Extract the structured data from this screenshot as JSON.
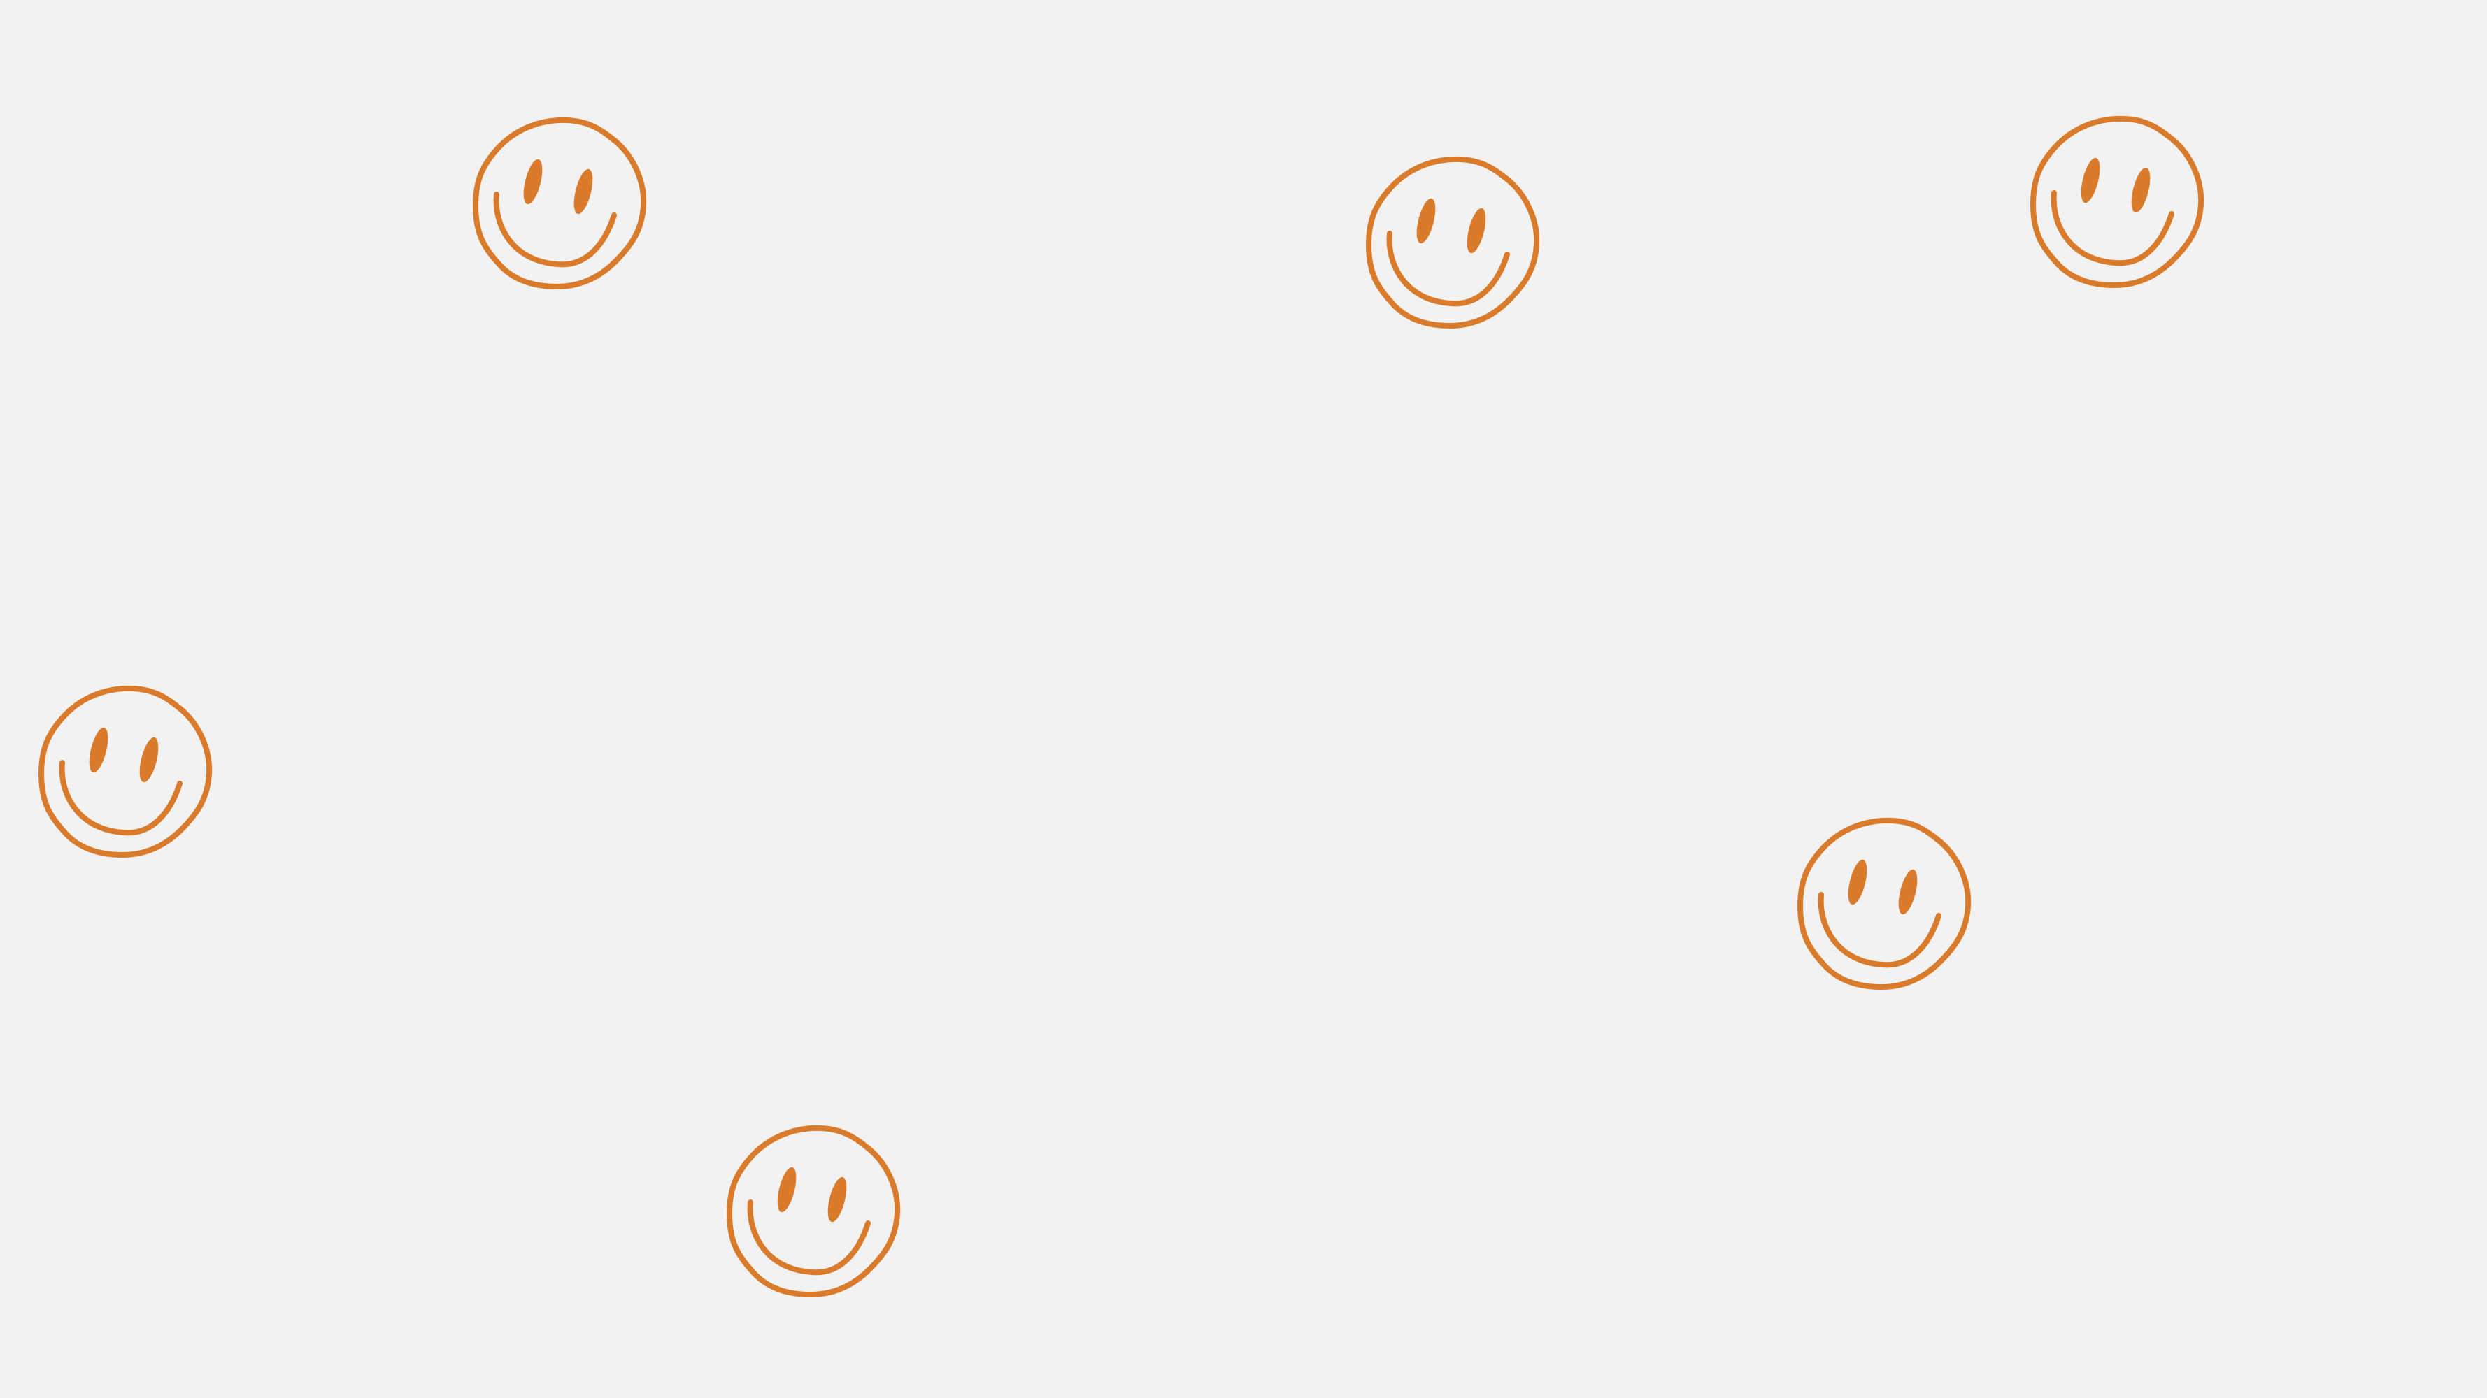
{
  "background_color": "#f2f2f2",
  "accent_color": "#d97b2a",
  "smileys": [
    {
      "icon": "smiley-face-icon"
    },
    {
      "icon": "smiley-face-icon"
    },
    {
      "icon": "smiley-face-icon"
    },
    {
      "icon": "smiley-face-icon"
    },
    {
      "icon": "smiley-face-icon"
    },
    {
      "icon": "smiley-face-icon"
    }
  ]
}
